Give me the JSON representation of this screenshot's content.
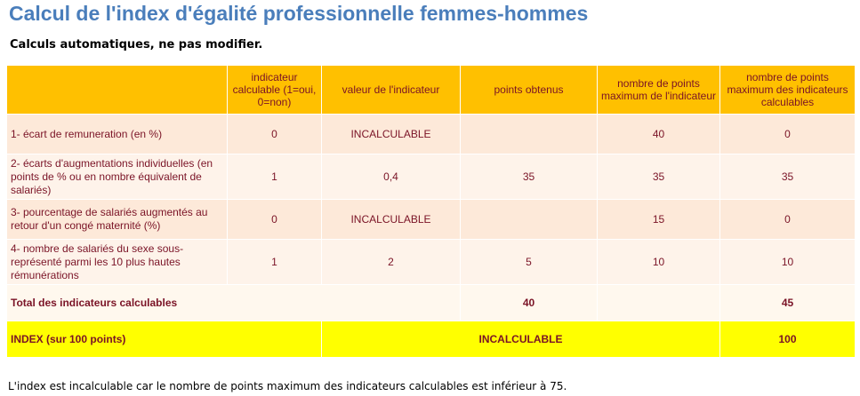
{
  "title": "Calcul de l'index d'égalité professionnelle femmes-hommes",
  "subtitle": "Calculs automatiques, ne pas modifier.",
  "table": {
    "headers": [
      "",
      "indicateur calculable (1=oui, 0=non)",
      "valeur de l'indicateur",
      "points obtenus",
      "nombre de points maximum de l'indicateur",
      "nombre de points maximum des indicateurs calculables"
    ],
    "rows": [
      [
        "1- écart de remuneration (en %)",
        "0",
        "INCALCULABLE",
        "",
        "40",
        "0"
      ],
      [
        "2- écarts d'augmentations individuelles (en points de % ou en nombre équivalent de salariés)",
        "1",
        "0,4",
        "35",
        "35",
        "35"
      ],
      [
        "3- pourcentage de salariés augmentés au retour d'un congé maternité (%)",
        "0",
        "INCALCULABLE",
        "",
        "15",
        "0"
      ],
      [
        "4- nombre de salariés du sexe sous-représenté parmi les 10 plus hautes rémunérations",
        "1",
        "2",
        "5",
        "10",
        "10"
      ]
    ],
    "total": {
      "label": "Total des indicateurs calculables",
      "points": "40",
      "max_calculable": "45"
    },
    "index": {
      "label": "INDEX (sur 100 points)",
      "value": "INCALCULABLE",
      "max": "100"
    }
  },
  "footnote": "L'index est incalculable car le nombre de points maximum des indicateurs calculables est inférieur à 75.",
  "colors": {
    "title": "#4a7ebb",
    "header_bg": "#ffc000",
    "row_bg": "#fde9d9",
    "index_bg": "#ffff00",
    "text": "#7a1326"
  }
}
